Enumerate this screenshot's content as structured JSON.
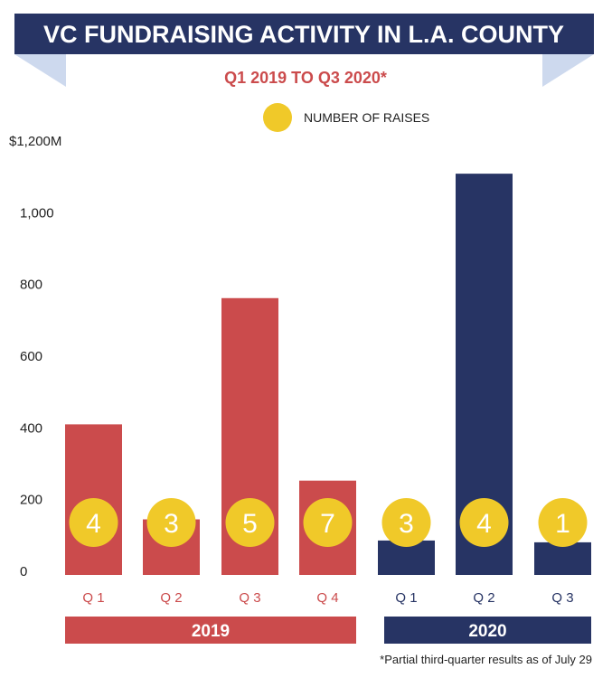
{
  "chart_data": {
    "type": "bar",
    "title": "VC FUNDRAISING ACTIVITY IN L.A. COUNTY",
    "subtitle": "Q1 2019 TO Q3 2020*",
    "legend": {
      "label": "NUMBER OF RAISES",
      "placement": "top-center"
    },
    "ylabel": "",
    "ylim": [
      0,
      1200
    ],
    "yticks": [
      {
        "value": 0,
        "label": "0"
      },
      {
        "value": 200,
        "label": "200"
      },
      {
        "value": 400,
        "label": "400"
      },
      {
        "value": 600,
        "label": "600"
      },
      {
        "value": 800,
        "label": "800"
      },
      {
        "value": 1000,
        "label": "1,000"
      },
      {
        "value": 1200,
        "label": "$1,200M"
      }
    ],
    "categories": [
      "Q 1",
      "Q 2",
      "Q 3",
      "Q 4",
      "Q 1",
      "Q 2",
      "Q 3"
    ],
    "years": [
      {
        "label": "2019",
        "count": 4,
        "color": "#cb4b4c"
      },
      {
        "label": "2020",
        "count": 3,
        "color": "#273464"
      }
    ],
    "values": [
      420,
      155,
      772,
      263,
      96,
      1119,
      91
    ],
    "raises": [
      "4",
      "3",
      "5",
      "7",
      "3",
      "4",
      "1"
    ],
    "footnote": "*Partial third-quarter results as of July 29",
    "colors": {
      "navy": "#273464",
      "red": "#cb4b4c",
      "yellow": "#f0c929",
      "ribbon": "#cdd9ee"
    }
  }
}
